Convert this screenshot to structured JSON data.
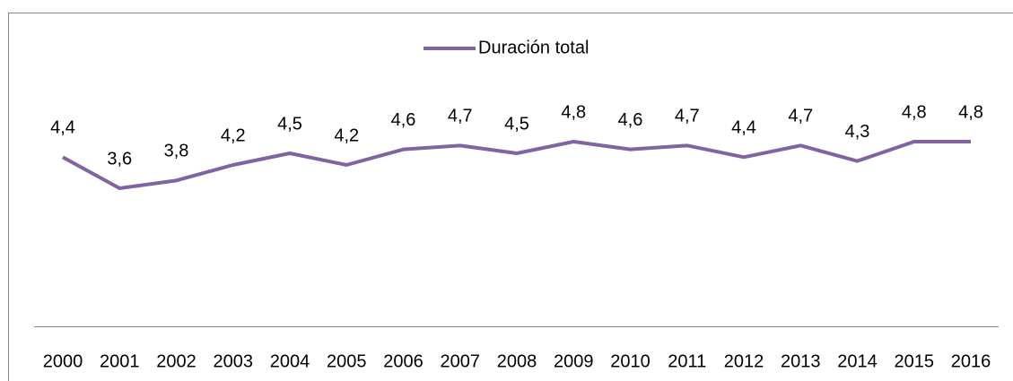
{
  "chart_data": {
    "type": "line",
    "categories": [
      "2000",
      "2001",
      "2002",
      "2003",
      "2004",
      "2005",
      "2006",
      "2007",
      "2008",
      "2009",
      "2010",
      "2011",
      "2012",
      "2013",
      "2014",
      "2015",
      "2016"
    ],
    "series": [
      {
        "name": "Duración total",
        "color": "#8064a2",
        "values": [
          4.4,
          3.6,
          3.8,
          4.2,
          4.5,
          4.2,
          4.6,
          4.7,
          4.5,
          4.8,
          4.6,
          4.7,
          4.4,
          4.7,
          4.3,
          4.8,
          4.8
        ],
        "value_labels": [
          "4,4",
          "3,6",
          "3,8",
          "4,2",
          "4,5",
          "4,2",
          "4,6",
          "4,7",
          "4,5",
          "4,8",
          "4,6",
          "4,7",
          "4,4",
          "4,7",
          "4,3",
          "4,8",
          "4,8"
        ]
      }
    ],
    "ylim": [
      0,
      6
    ],
    "legend": "top"
  }
}
